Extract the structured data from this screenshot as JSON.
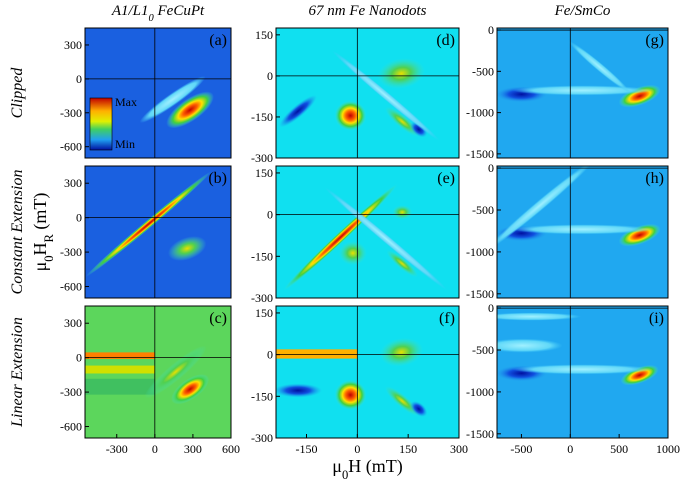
{
  "chart_data": [
    {
      "type": "contour",
      "panel_label": "(a)",
      "title_parts": [
        "A1/L1",
        "0",
        " FeCuPt"
      ],
      "row_label": "Clipped",
      "colorbar": {
        "max_label": "Max",
        "min_label": "Min"
      },
      "xlim": [
        -550,
        600
      ],
      "ylim": [
        -700,
        450
      ],
      "yticks": [
        300,
        0,
        -300,
        -600
      ]
    },
    {
      "type": "contour",
      "panel_label": "(b)",
      "row_label": "Constant Extension",
      "ylabel_parts": [
        "μ",
        "0",
        "H",
        "R",
        " (mT)"
      ],
      "xlim": [
        -550,
        600
      ],
      "ylim": [
        -700,
        450
      ],
      "yticks": [
        300,
        0,
        -300,
        -600
      ]
    },
    {
      "type": "contour",
      "panel_label": "(c)",
      "row_label": "Linear Extension",
      "xlim": [
        -550,
        600
      ],
      "ylim": [
        -700,
        450
      ],
      "yticks": [
        300,
        0,
        -300,
        -600
      ],
      "xticks": [
        -300,
        0,
        300,
        600
      ]
    },
    {
      "type": "contour",
      "panel_label": "(d)",
      "title_parts": [
        "67 nm  Fe Nanodots"
      ],
      "xlim": [
        -240,
        300
      ],
      "ylim": [
        -300,
        175
      ],
      "yticks": [
        150,
        0,
        -150,
        -300
      ]
    },
    {
      "type": "contour",
      "panel_label": "(e)",
      "xlim": [
        -240,
        300
      ],
      "ylim": [
        -300,
        175
      ],
      "yticks": [
        150,
        0,
        -150,
        -300
      ]
    },
    {
      "type": "contour",
      "panel_label": "(f)",
      "xlabel_parts": [
        "μ",
        "0",
        "H (mT)"
      ],
      "xlim": [
        -240,
        300
      ],
      "ylim": [
        -300,
        175
      ],
      "yticks": [
        150,
        0,
        -150,
        -300
      ],
      "xticks": [
        -150,
        0,
        150,
        300
      ]
    },
    {
      "type": "contour",
      "panel_label": "(g)",
      "title_parts": [
        "Fe/SmCo"
      ],
      "xlim": [
        -750,
        1000
      ],
      "ylim": [
        -1550,
        25
      ],
      "yticks": [
        0,
        -500,
        -1000,
        -1500
      ]
    },
    {
      "type": "contour",
      "panel_label": "(h)",
      "xlim": [
        -750,
        1000
      ],
      "ylim": [
        -1550,
        25
      ],
      "yticks": [
        0,
        -500,
        -1000,
        -1500
      ]
    },
    {
      "type": "contour",
      "panel_label": "(i)",
      "xlim": [
        -750,
        1000
      ],
      "ylim": [
        -1550,
        25
      ],
      "yticks": [
        0,
        -500,
        -1000,
        -1500
      ],
      "xticks": [
        -500,
        0,
        500,
        1000
      ]
    }
  ]
}
